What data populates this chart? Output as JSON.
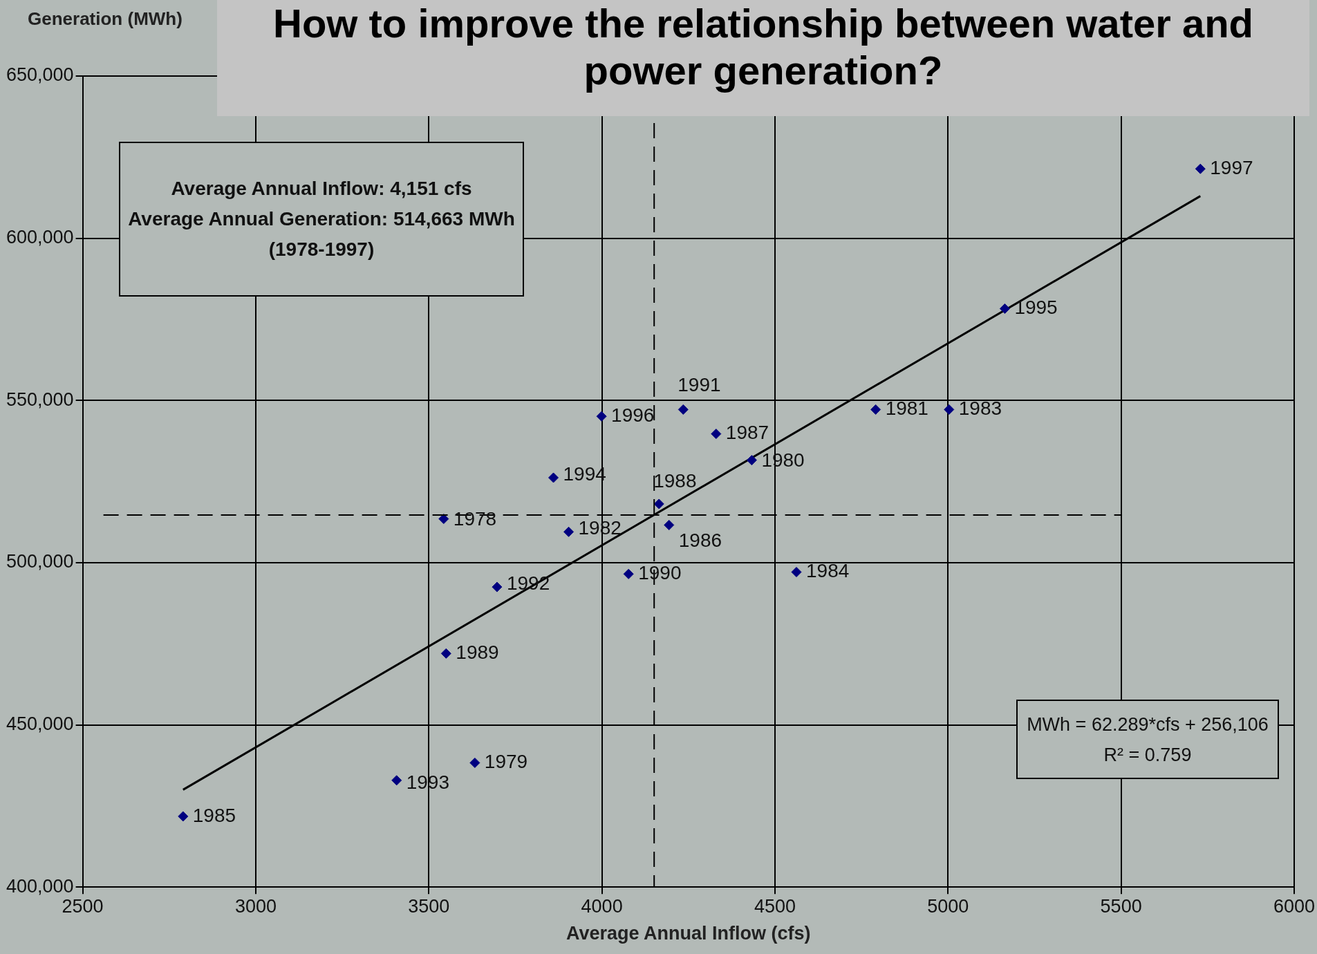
{
  "chart_data": {
    "type": "scatter",
    "title": "How to improve the relationship between water and power generation?",
    "xlabel": "Average Annual Inflow (cfs)",
    "ylabel": "Generation (MWh)",
    "xlim": [
      2500,
      6000
    ],
    "xticks": [
      2500,
      3000,
      3500,
      4000,
      4500,
      5000,
      5500,
      6000
    ],
    "ylim": [
      400000,
      650000
    ],
    "yticks": [
      {
        "value": 400000,
        "label": "400,000"
      },
      {
        "value": 450000,
        "label": "450,000"
      },
      {
        "value": 500000,
        "label": "500,000"
      },
      {
        "value": 550000,
        "label": "550,000"
      },
      {
        "value": 600000,
        "label": "600,000"
      },
      {
        "value": 650000,
        "label": "650,000"
      }
    ],
    "grid": true,
    "legend": false,
    "marker": "diamond",
    "series": [
      {
        "type": "scatter",
        "color": "#000080",
        "x": [
          5729,
          5164,
          4235,
          3999,
          4330,
          4433,
          4791,
          5003,
          3860,
          4165,
          3543,
          4194,
          3904,
          4077,
          4562,
          3697,
          3550,
          3633,
          3407,
          2790
        ],
        "values": [
          621400,
          578300,
          547200,
          545100,
          539700,
          531600,
          547200,
          547200,
          526200,
          518100,
          513500,
          511600,
          509500,
          496500,
          497100,
          492500,
          472000,
          438300,
          432900,
          421800
        ]
      },
      {
        "type": "line",
        "color": "#000000",
        "x": [
          2790,
          5729
        ],
        "values": [
          430000,
          613000
        ],
        "marker": "none",
        "line_style": "solid"
      }
    ],
    "ref_lines": [
      {
        "axis": "x",
        "value": 4151,
        "color": "#000000",
        "line_style": "dashed"
      },
      {
        "axis": "y",
        "value": 514663,
        "color": "#000000",
        "line_style": "dashed"
      }
    ],
    "annotations": [
      "Average Annual Inflow: 4,151 cfs\nAverage Annual Generation: 514,663 MWh\n(1978-1997)",
      "MWh = 62.289*cfs + 256,106\nR² = 0.759",
      {
        "text": "1997",
        "x": 5729,
        "y": 621400
      },
      {
        "text": "1995",
        "x": 5164,
        "y": 578300
      },
      {
        "text": "1991",
        "x": 4235,
        "y": 547200
      },
      {
        "text": "1996",
        "x": 3999,
        "y": 545100
      },
      {
        "text": "1987",
        "x": 4330,
        "y": 539700
      },
      {
        "text": "1980",
        "x": 4433,
        "y": 531600
      },
      {
        "text": "1981",
        "x": 4791,
        "y": 547200
      },
      {
        "text": "1983",
        "x": 5003,
        "y": 547200
      },
      {
        "text": "1994",
        "x": 3860,
        "y": 526200
      },
      {
        "text": "1988",
        "x": 4165,
        "y": 518100
      },
      {
        "text": "1978",
        "x": 3543,
        "y": 513500
      },
      {
        "text": "1986",
        "x": 4194,
        "y": 511600
      },
      {
        "text": "1982",
        "x": 3904,
        "y": 509500
      },
      {
        "text": "1990",
        "x": 4077,
        "y": 496500
      },
      {
        "text": "1984",
        "x": 4562,
        "y": 497100
      },
      {
        "text": "1992",
        "x": 3697,
        "y": 492500
      },
      {
        "text": "1989",
        "x": 3550,
        "y": 472000
      },
      {
        "text": "1979",
        "x": 3633,
        "y": 438300
      },
      {
        "text": "1993",
        "x": 3407,
        "y": 432900
      },
      {
        "text": "1985",
        "x": 2790,
        "y": 421800
      }
    ]
  }
}
